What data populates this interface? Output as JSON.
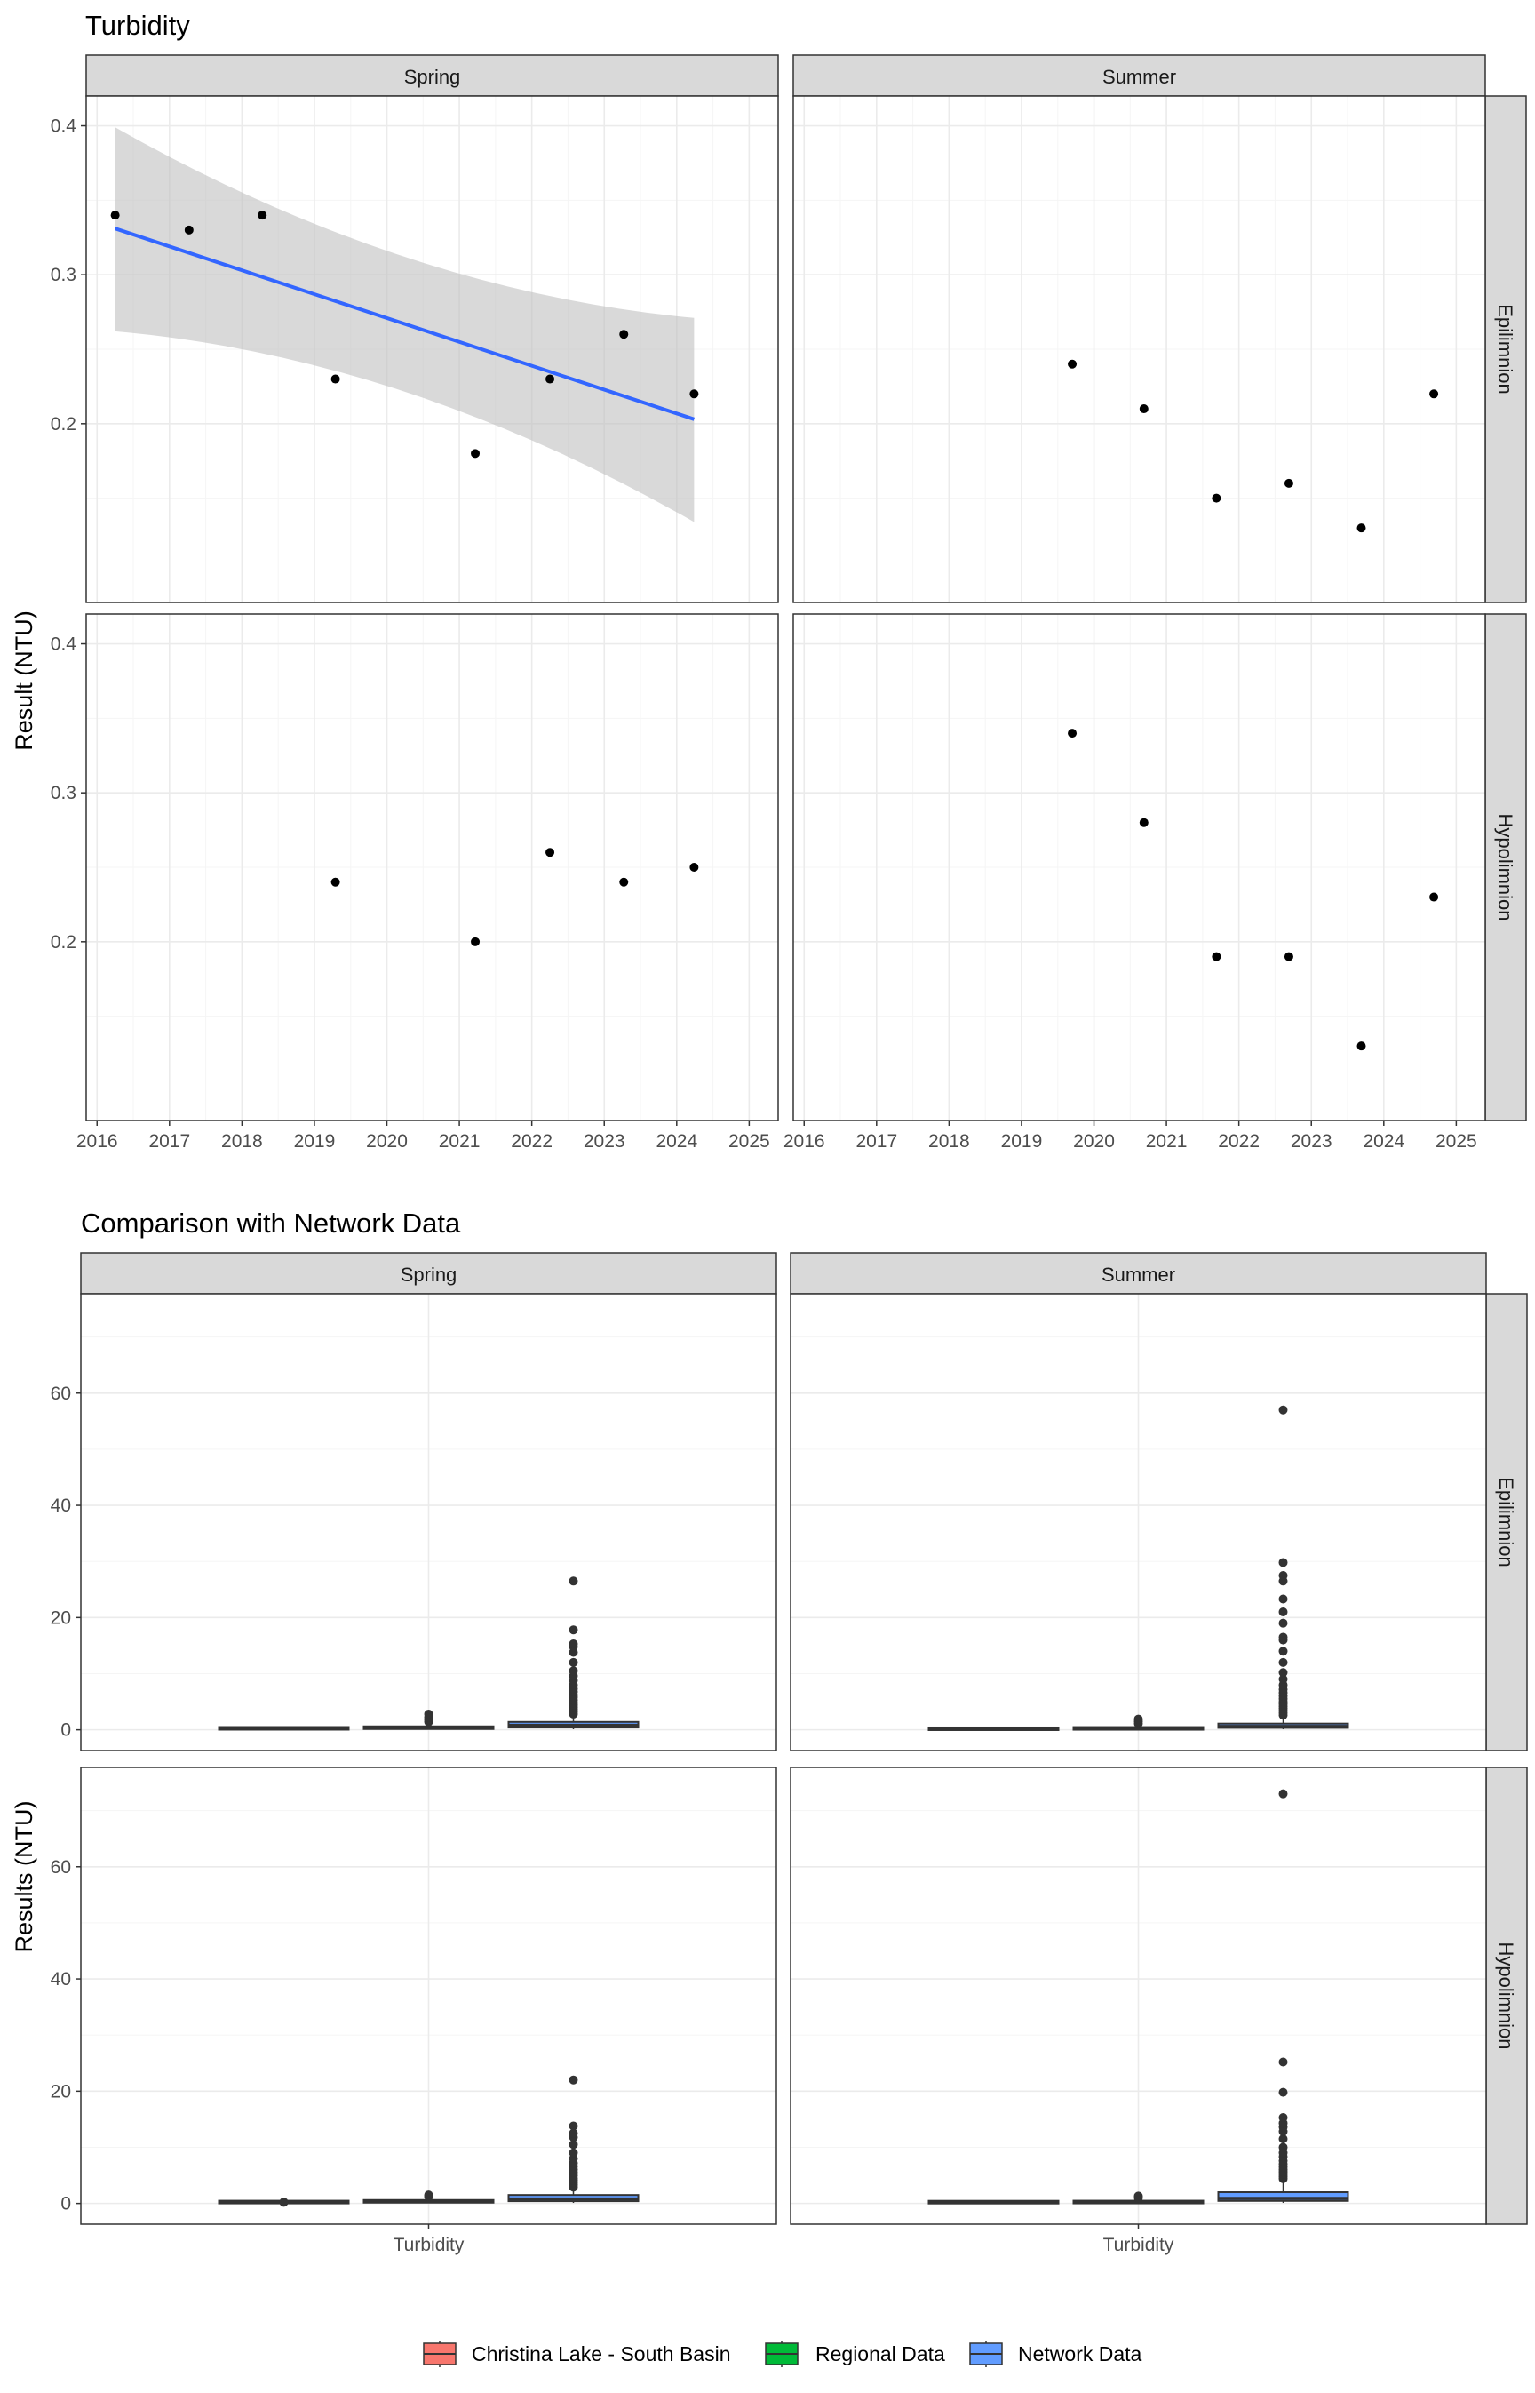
{
  "colors": {
    "panel_border": "#333333",
    "strip_fill": "#d9d9d9",
    "grid_major": "#ebebeb",
    "grid_minor": "#f5f5f5",
    "trend_line": "#3366ff",
    "ribbon": "#bfbfbf",
    "point": "#000000",
    "christina": "#f8766d",
    "regional": "#00ba38",
    "network": "#619cff",
    "box_line": "#333333"
  },
  "legend": {
    "items": [
      {
        "label": "Christina Lake - South Basin",
        "color": "#f8766d"
      },
      {
        "label": "Regional Data",
        "color": "#00ba38"
      },
      {
        "label": "Network Data",
        "color": "#619cff"
      }
    ]
  },
  "chart_data": [
    {
      "type": "scatter",
      "title": "Turbidity",
      "ylabel": "Result (NTU)",
      "xlabel": "",
      "facet_cols": [
        "Spring",
        "Summer"
      ],
      "facet_rows": [
        "Epilimnion",
        "Hypolimnion"
      ],
      "xlim": [
        2015.85,
        2025.4
      ],
      "ylim": [
        0.08,
        0.42
      ],
      "x_ticks": [
        "2016",
        "2017",
        "2018",
        "2019",
        "2020",
        "2021",
        "2022",
        "2023",
        "2024",
        "2025"
      ],
      "y_ticks": [
        "0.2",
        "0.3",
        "0.4"
      ],
      "grid": true,
      "panels": [
        {
          "col": "Spring",
          "row": "Epilimnion",
          "points": [
            [
              2016.25,
              0.34
            ],
            [
              2017.27,
              0.33
            ],
            [
              2018.28,
              0.34
            ],
            [
              2019.29,
              0.23
            ],
            [
              2021.22,
              0.18
            ],
            [
              2022.25,
              0.23
            ],
            [
              2023.27,
              0.26
            ],
            [
              2024.24,
              0.22
            ]
          ],
          "trend": {
            "x": [
              2016.25,
              2024.24
            ],
            "y": [
              0.331,
              0.203
            ],
            "ribbon_lower": [
              0.262,
              0.134
            ],
            "ribbon_upper": [
              0.399,
              0.271
            ]
          }
        },
        {
          "col": "Summer",
          "row": "Epilimnion",
          "points": [
            [
              2019.7,
              0.24
            ],
            [
              2020.69,
              0.21
            ],
            [
              2021.69,
              0.15
            ],
            [
              2022.69,
              0.16
            ],
            [
              2023.69,
              0.13
            ],
            [
              2024.69,
              0.22
            ]
          ]
        },
        {
          "col": "Spring",
          "row": "Hypolimnion",
          "points": [
            [
              2019.29,
              0.24
            ],
            [
              2021.22,
              0.2
            ],
            [
              2022.25,
              0.26
            ],
            [
              2023.27,
              0.24
            ],
            [
              2024.24,
              0.25
            ]
          ]
        },
        {
          "col": "Summer",
          "row": "Hypolimnion",
          "points": [
            [
              2019.7,
              0.34
            ],
            [
              2020.69,
              0.28
            ],
            [
              2021.69,
              0.19
            ],
            [
              2022.69,
              0.19
            ],
            [
              2023.69,
              0.13
            ],
            [
              2024.69,
              0.23
            ]
          ]
        }
      ]
    },
    {
      "type": "box",
      "title": "Comparison with Network Data",
      "ylabel": "Results (NTU)",
      "xlabel": "",
      "categories": [
        "Turbidity"
      ],
      "facet_cols": [
        "Spring",
        "Summer"
      ],
      "facet_rows": [
        "Epilimnion",
        "Hypolimnion"
      ],
      "ylim": [
        -3.7,
        77.7
      ],
      "y_ticks": [
        "0",
        "20",
        "40",
        "60"
      ],
      "series": [
        "Christina Lake - South Basin",
        "Regional Data",
        "Network Data"
      ],
      "grid": true,
      "panels": [
        {
          "col": "Spring",
          "row": "Epilimnion",
          "boxes": [
            {
              "series": "Christina Lake - South Basin",
              "min": 0.18,
              "q1": 0.22,
              "median": 0.24,
              "q3": 0.3,
              "max": 0.34,
              "outliers": []
            },
            {
              "series": "Regional Data",
              "min": 0.05,
              "q1": 0.15,
              "median": 0.3,
              "q3": 0.6,
              "max": 1.1,
              "outliers": [
                1.4,
                1.8,
                2.2,
                2.8
              ]
            },
            {
              "series": "Network Data",
              "min": 0.1,
              "q1": 0.4,
              "median": 0.8,
              "q3": 1.4,
              "max": 2.6,
              "outliers": [
                2.8,
                3.2,
                3.6,
                4.0,
                4.4,
                4.8,
                5.3,
                5.8,
                6.2,
                6.8,
                7.3,
                8.0,
                8.8,
                9.6,
                10.5,
                12.0,
                13.8,
                14.8,
                15.3,
                17.8,
                26.5
              ]
            }
          ]
        },
        {
          "col": "Summer",
          "row": "Epilimnion",
          "boxes": [
            {
              "series": "Christina Lake - South Basin",
              "min": 0.13,
              "q1": 0.15,
              "median": 0.185,
              "q3": 0.215,
              "max": 0.24,
              "outliers": []
            },
            {
              "series": "Regional Data",
              "min": 0.05,
              "q1": 0.1,
              "median": 0.2,
              "q3": 0.4,
              "max": 0.8,
              "outliers": [
                1.1,
                1.5,
                1.9
              ]
            },
            {
              "series": "Network Data",
              "min": 0.1,
              "q1": 0.35,
              "median": 0.6,
              "q3": 1.1,
              "max": 2.2,
              "outliers": [
                2.6,
                3.0,
                3.4,
                3.8,
                4.2,
                4.6,
                5.0,
                5.5,
                6.0,
                6.6,
                7.2,
                8.0,
                9.0,
                10.2,
                12.0,
                14.0,
                16.0,
                16.5,
                19.0,
                21.0,
                23.3,
                26.5,
                27.5,
                29.8,
                57.0
              ]
            }
          ]
        },
        {
          "col": "Spring",
          "row": "Hypolimnion",
          "boxes": [
            {
              "series": "Christina Lake - South Basin",
              "min": 0.2,
              "q1": 0.24,
              "median": 0.24,
              "q3": 0.25,
              "max": 0.26,
              "outliers": [
                0.2,
                0.26
              ]
            },
            {
              "series": "Regional Data",
              "min": 0.05,
              "q1": 0.15,
              "median": 0.3,
              "q3": 0.6,
              "max": 1.0,
              "outliers": [
                1.2,
                1.5
              ]
            },
            {
              "series": "Network Data",
              "min": 0.1,
              "q1": 0.4,
              "median": 0.8,
              "q3": 1.5,
              "max": 2.6,
              "outliers": [
                2.9,
                3.3,
                3.7,
                4.1,
                4.5,
                5.0,
                5.5,
                6.0,
                6.6,
                7.2,
                8.0,
                9.0,
                10.5,
                11.8,
                12.5,
                13.8,
                22.0
              ]
            }
          ]
        },
        {
          "col": "Summer",
          "row": "Hypolimnion",
          "boxes": [
            {
              "series": "Christina Lake - South Basin",
              "min": 0.13,
              "q1": 0.19,
              "median": 0.21,
              "q3": 0.265,
              "max": 0.34,
              "outliers": []
            },
            {
              "series": "Regional Data",
              "min": 0.05,
              "q1": 0.1,
              "median": 0.2,
              "q3": 0.4,
              "max": 0.8,
              "outliers": [
                1.0,
                1.3
              ]
            },
            {
              "series": "Network Data",
              "min": 0.1,
              "q1": 0.45,
              "median": 0.9,
              "q3": 2.0,
              "max": 4.0,
              "outliers": [
                4.4,
                4.8,
                5.2,
                5.6,
                6.0,
                6.5,
                7.0,
                7.6,
                8.3,
                9.0,
                10.0,
                11.5,
                12.8,
                13.6,
                14.3,
                15.3,
                19.8,
                25.2,
                73.0
              ]
            }
          ]
        }
      ]
    }
  ]
}
